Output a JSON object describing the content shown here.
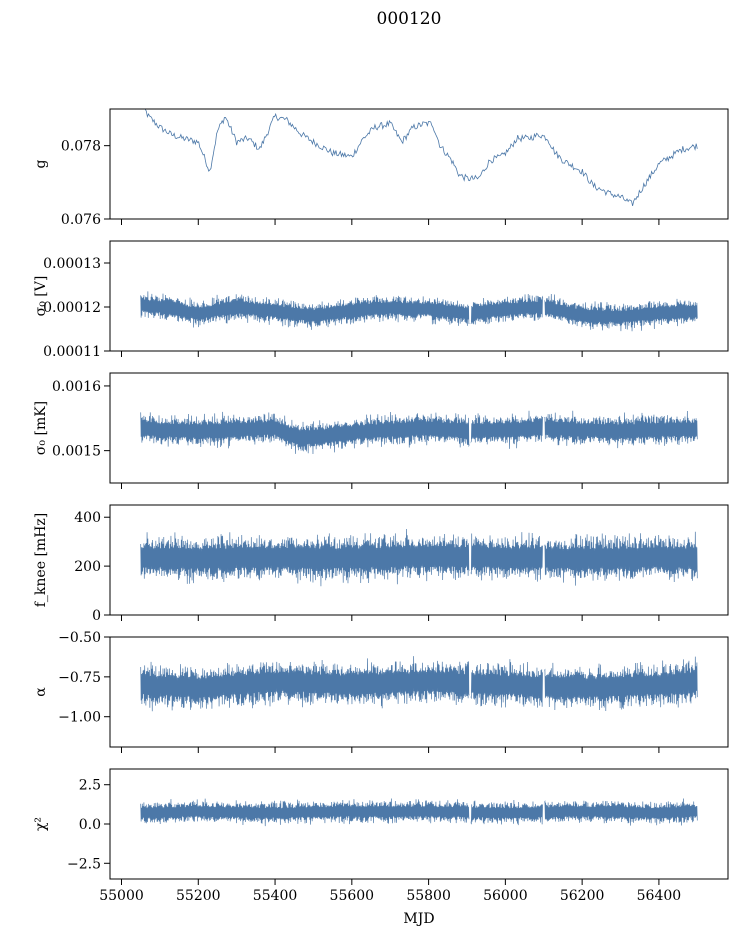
{
  "title": "000120",
  "xlabel": "MJD",
  "colors": {
    "series": "#4c78a8",
    "axes": "#000000",
    "background": "#ffffff"
  },
  "chart_data": [
    {
      "type": "line",
      "ylabel": "g",
      "xlim": [
        54970,
        56580
      ],
      "ylim": [
        0.076,
        0.079
      ],
      "yticks": [
        0.076,
        0.078
      ],
      "ytick_labels": [
        "0.076",
        "0.078"
      ],
      "xticks": [
        55000,
        55200,
        55400,
        55600,
        55800,
        56000,
        56200,
        56400
      ],
      "xtick_labels": [],
      "x": [
        55050,
        55070,
        55100,
        55130,
        55160,
        55200,
        55230,
        55250,
        55270,
        55300,
        55330,
        55360,
        55400,
        55430,
        55470,
        55500,
        55550,
        55600,
        55630,
        55660,
        55700,
        55730,
        55760,
        55790,
        55810,
        55830,
        55860,
        55880,
        55900,
        55930,
        55960,
        55990,
        56010,
        56030,
        56060,
        56090,
        56110,
        56130,
        56150,
        56200,
        56230,
        56270,
        56300,
        56330,
        56360,
        56400,
        56430,
        56460,
        56500
      ],
      "y": [
        0.0792,
        0.0788,
        0.0785,
        0.0783,
        0.0782,
        0.0781,
        0.0773,
        0.0784,
        0.0788,
        0.0781,
        0.0782,
        0.0779,
        0.0788,
        0.0787,
        0.0783,
        0.0781,
        0.0778,
        0.0777,
        0.0782,
        0.0785,
        0.0786,
        0.0781,
        0.0785,
        0.0786,
        0.0786,
        0.078,
        0.0776,
        0.0772,
        0.0771,
        0.0771,
        0.0776,
        0.0777,
        0.0779,
        0.0782,
        0.0782,
        0.0783,
        0.0782,
        0.0778,
        0.0776,
        0.0773,
        0.0769,
        0.0767,
        0.0766,
        0.0764,
        0.0769,
        0.0775,
        0.0777,
        0.0779,
        0.078
      ]
    },
    {
      "type": "line",
      "style": "dense-noise",
      "ylabel": "σ₀ [V]",
      "xlim": [
        54970,
        56580
      ],
      "ylim": [
        0.00011,
        0.000135
      ],
      "yticks": [
        0.00011,
        0.00012,
        0.00013
      ],
      "ytick_labels": [
        "0.00011",
        "0.00012",
        "0.00013"
      ],
      "xticks": [
        55000,
        55200,
        55400,
        55600,
        55800,
        56000,
        56200,
        56400
      ],
      "xtick_labels": [],
      "x": [
        55050,
        55100,
        55200,
        55300,
        55400,
        55500,
        55600,
        55700,
        55800,
        55900,
        56000,
        56100,
        56200,
        56300,
        56400,
        56500
      ],
      "y": [
        0.0001205,
        0.00012,
        0.0001185,
        0.00012,
        0.000119,
        0.000118,
        0.0001192,
        0.0001198,
        0.0001195,
        0.0001185,
        0.0001195,
        0.00012,
        0.000118,
        0.0001178,
        0.0001185,
        0.000119
      ],
      "spread": 3.5e-06,
      "gaps": [
        55908,
        56100
      ]
    },
    {
      "type": "line",
      "style": "dense-noise",
      "ylabel": "σ₀ [mK]",
      "xlim": [
        54970,
        56580
      ],
      "ylim": [
        0.00145,
        0.00162
      ],
      "yticks": [
        0.0015,
        0.0016
      ],
      "ytick_labels": [
        "0.0015",
        "0.0016"
      ],
      "xticks": [
        55000,
        55200,
        55400,
        55600,
        55800,
        56000,
        56200,
        56400
      ],
      "xtick_labels": [],
      "x": [
        55050,
        55100,
        55200,
        55300,
        55400,
        55450,
        55500,
        55600,
        55700,
        55800,
        55900,
        56000,
        56100,
        56200,
        56300,
        56400,
        56500
      ],
      "y": [
        0.001535,
        0.001532,
        0.00153,
        0.001532,
        0.001535,
        0.001522,
        0.00152,
        0.001528,
        0.001532,
        0.001535,
        0.00153,
        0.001532,
        0.001535,
        0.001532,
        0.00153,
        0.001532,
        0.001533
      ],
      "spread": 2.8e-05,
      "gaps": [
        55908,
        56100
      ]
    },
    {
      "type": "line",
      "style": "dense-noise",
      "ylabel": "f_knee [mHz]",
      "xlim": [
        54970,
        56580
      ],
      "ylim": [
        0,
        450
      ],
      "yticks": [
        0,
        200,
        400
      ],
      "ytick_labels": [
        "0",
        "200",
        "400"
      ],
      "xticks": [
        55000,
        55200,
        55400,
        55600,
        55800,
        56000,
        56200,
        56400
      ],
      "xtick_labels": [],
      "x": [
        55050,
        55200,
        55400,
        55600,
        55800,
        56000,
        56200,
        56400,
        56500
      ],
      "y": [
        235,
        230,
        235,
        232,
        240,
        235,
        230,
        235,
        232
      ],
      "spread": 110,
      "gaps": [
        55908,
        56100
      ]
    },
    {
      "type": "line",
      "style": "dense-noise",
      "ylabel": "α",
      "xlim": [
        54970,
        56580
      ],
      "ylim": [
        -1.19,
        -0.5
      ],
      "yticks": [
        -1.0,
        -0.75,
        -0.5
      ],
      "ytick_labels": [
        "−1.00",
        "−0.75",
        "−0.50"
      ],
      "xticks": [
        55000,
        55200,
        55400,
        55600,
        55800,
        56000,
        56200,
        56400
      ],
      "xtick_labels": [],
      "x": [
        55050,
        55200,
        55400,
        55600,
        55800,
        56000,
        56200,
        56400,
        56500
      ],
      "y": [
        -0.8,
        -0.82,
        -0.78,
        -0.8,
        -0.78,
        -0.8,
        -0.82,
        -0.8,
        -0.78
      ],
      "spread": 0.16,
      "gaps": [
        55908,
        56100
      ]
    },
    {
      "type": "line",
      "style": "dense-noise",
      "ylabel": "χ²",
      "xlim": [
        54970,
        56580
      ],
      "ylim": [
        -3.5,
        3.5
      ],
      "yticks": [
        -2.5,
        0.0,
        2.5
      ],
      "ytick_labels": [
        "−2.5",
        "0.0",
        "2.5"
      ],
      "xticks": [
        55000,
        55200,
        55400,
        55600,
        55800,
        56000,
        56200,
        56400
      ],
      "xtick_labels": [
        "55000",
        "55200",
        "55400",
        "55600",
        "55800",
        "56000",
        "56200",
        "56400"
      ],
      "x": [
        55050,
        55200,
        55400,
        55600,
        55800,
        56000,
        56200,
        56400,
        56500
      ],
      "y": [
        0.7,
        0.8,
        0.7,
        0.8,
        0.8,
        0.7,
        0.8,
        0.7,
        0.8
      ],
      "spread": 0.85,
      "gaps": [
        55908,
        56100
      ]
    }
  ]
}
